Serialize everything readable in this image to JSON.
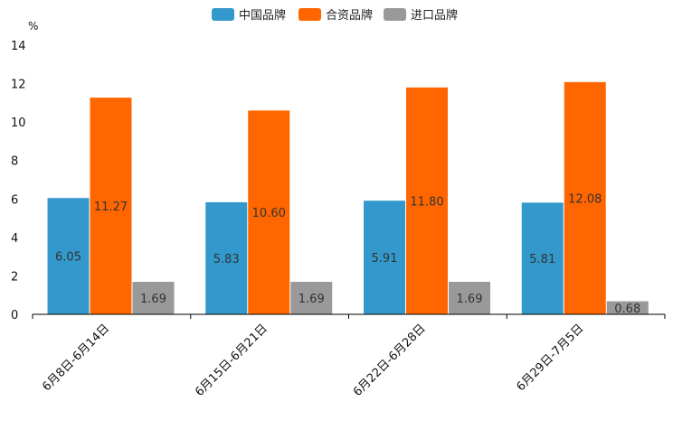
{
  "chart_data": {
    "type": "bar",
    "title": "",
    "xlabel": "",
    "ylabel": "%",
    "ylim": [
      0,
      14
    ],
    "yticks": [
      0,
      2,
      4,
      6,
      8,
      10,
      12,
      14
    ],
    "grid": false,
    "legend_position": "top-center",
    "categories": [
      "6月8日-6月14日",
      "6月15日-6月21日",
      "6月22日-6月28日",
      "6月29日-7月5日"
    ],
    "series": [
      {
        "name": "中国品牌",
        "color": "#3399cc",
        "values": [
          6.05,
          5.83,
          5.91,
          5.81
        ],
        "labels": [
          "6.05",
          "5.83",
          "5.91",
          "5.81"
        ]
      },
      {
        "name": "合资品牌",
        "color": "#ff6600",
        "values": [
          11.27,
          10.6,
          11.8,
          12.08
        ],
        "labels": [
          "11.27",
          "10.60",
          "11.80",
          "12.08"
        ]
      },
      {
        "name": "进口品牌",
        "color": "#999999",
        "values": [
          1.69,
          1.69,
          1.69,
          0.68
        ],
        "labels": [
          "1.69",
          "1.69",
          "1.69",
          "0.68"
        ]
      }
    ]
  }
}
